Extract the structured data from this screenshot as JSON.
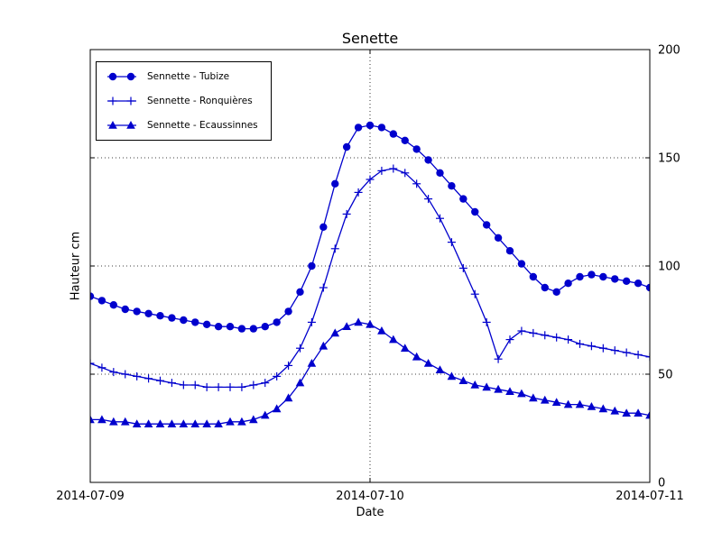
{
  "chart_data": {
    "type": "line",
    "title": "Senette",
    "xlabel": "Date",
    "ylabel": "Hauteur cm",
    "line_color": "#0000cd",
    "background_color": "#ffffff",
    "grid": {
      "style": "dotted",
      "y_values": [
        50,
        100,
        150
      ],
      "x_values_hours": [
        24
      ]
    },
    "legend_position": "upper-left",
    "xlim_hours": [
      0,
      48
    ],
    "ylim": [
      0,
      200
    ],
    "x_tick_hours": [
      0,
      24,
      48
    ],
    "x_tick_labels": [
      "2014-07-09",
      "2014-07-10",
      "2014-07-11"
    ],
    "y_ticks": [
      0,
      50,
      100,
      150,
      200
    ],
    "x_hours": [
      0,
      1,
      2,
      3,
      4,
      5,
      6,
      7,
      8,
      9,
      10,
      11,
      12,
      13,
      14,
      15,
      16,
      17,
      18,
      19,
      20,
      21,
      22,
      23,
      24,
      25,
      26,
      27,
      28,
      29,
      30,
      31,
      32,
      33,
      34,
      35,
      36,
      37,
      38,
      39,
      40,
      41,
      42,
      43,
      44,
      45,
      46,
      47,
      48
    ],
    "series": [
      {
        "name": "Sennette - Tubize",
        "marker": "circle",
        "values": [
          86,
          84,
          82,
          80,
          79,
          78,
          77,
          76,
          75,
          74,
          73,
          72,
          72,
          71,
          71,
          72,
          74,
          79,
          88,
          100,
          118,
          138,
          155,
          164,
          165,
          164,
          161,
          158,
          154,
          149,
          143,
          137,
          131,
          125,
          119,
          113,
          107,
          101,
          95,
          90,
          88,
          92,
          95,
          96,
          95,
          94,
          93,
          92,
          90
        ]
      },
      {
        "name": "Sennette - Ronquières",
        "marker": "plus",
        "values": [
          55,
          53,
          51,
          50,
          49,
          48,
          47,
          46,
          45,
          45,
          44,
          44,
          44,
          44,
          45,
          46,
          49,
          54,
          62,
          74,
          90,
          108,
          124,
          134,
          140,
          144,
          145,
          143,
          138,
          131,
          122,
          111,
          99,
          87,
          74,
          57,
          66,
          70,
          69,
          68,
          67,
          66,
          64,
          63,
          62,
          61,
          60,
          59,
          58
        ]
      },
      {
        "name": "Sennette - Ecaussinnes",
        "marker": "triangle",
        "values": [
          29,
          29,
          28,
          28,
          27,
          27,
          27,
          27,
          27,
          27,
          27,
          27,
          28,
          28,
          29,
          31,
          34,
          39,
          46,
          55,
          63,
          69,
          72,
          74,
          73,
          70,
          66,
          62,
          58,
          55,
          52,
          49,
          47,
          45,
          44,
          43,
          42,
          41,
          39,
          38,
          37,
          36,
          36,
          35,
          34,
          33,
          32,
          32,
          31
        ]
      }
    ]
  }
}
